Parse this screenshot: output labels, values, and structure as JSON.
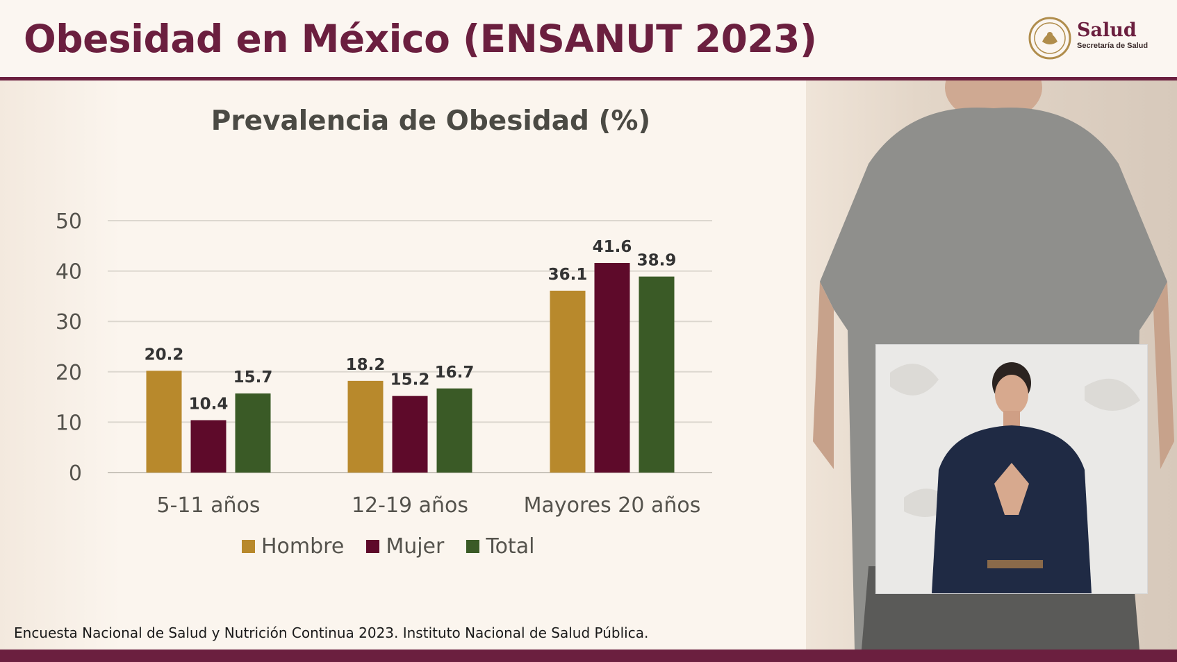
{
  "header": {
    "title": "Obesidad en México (ENSANUT 2023)",
    "logo_word": "Salud",
    "logo_sub": "Secretaría de Salud"
  },
  "chart_data": {
    "type": "bar",
    "title": "Prevalencia de Obesidad (%)",
    "categories": [
      "5-11 años",
      "12-19 años",
      "Mayores 20 años"
    ],
    "series": [
      {
        "name": "Hombre",
        "color": "#b8892c",
        "values": [
          20.2,
          18.2,
          36.1
        ]
      },
      {
        "name": "Mujer",
        "color": "#5e0a2a",
        "values": [
          10.4,
          15.2,
          41.6
        ]
      },
      {
        "name": "Total",
        "color": "#3a5a26",
        "values": [
          15.7,
          16.7,
          38.9
        ]
      }
    ],
    "yticks": [
      0,
      10,
      20,
      30,
      40,
      50
    ],
    "ylim": [
      0,
      50
    ],
    "grid": true,
    "legend": "bottom"
  },
  "footer": {
    "source": "Encuesta Nacional de Salud y Nutrición Continua 2023. Instituto Nacional de Salud Pública."
  }
}
